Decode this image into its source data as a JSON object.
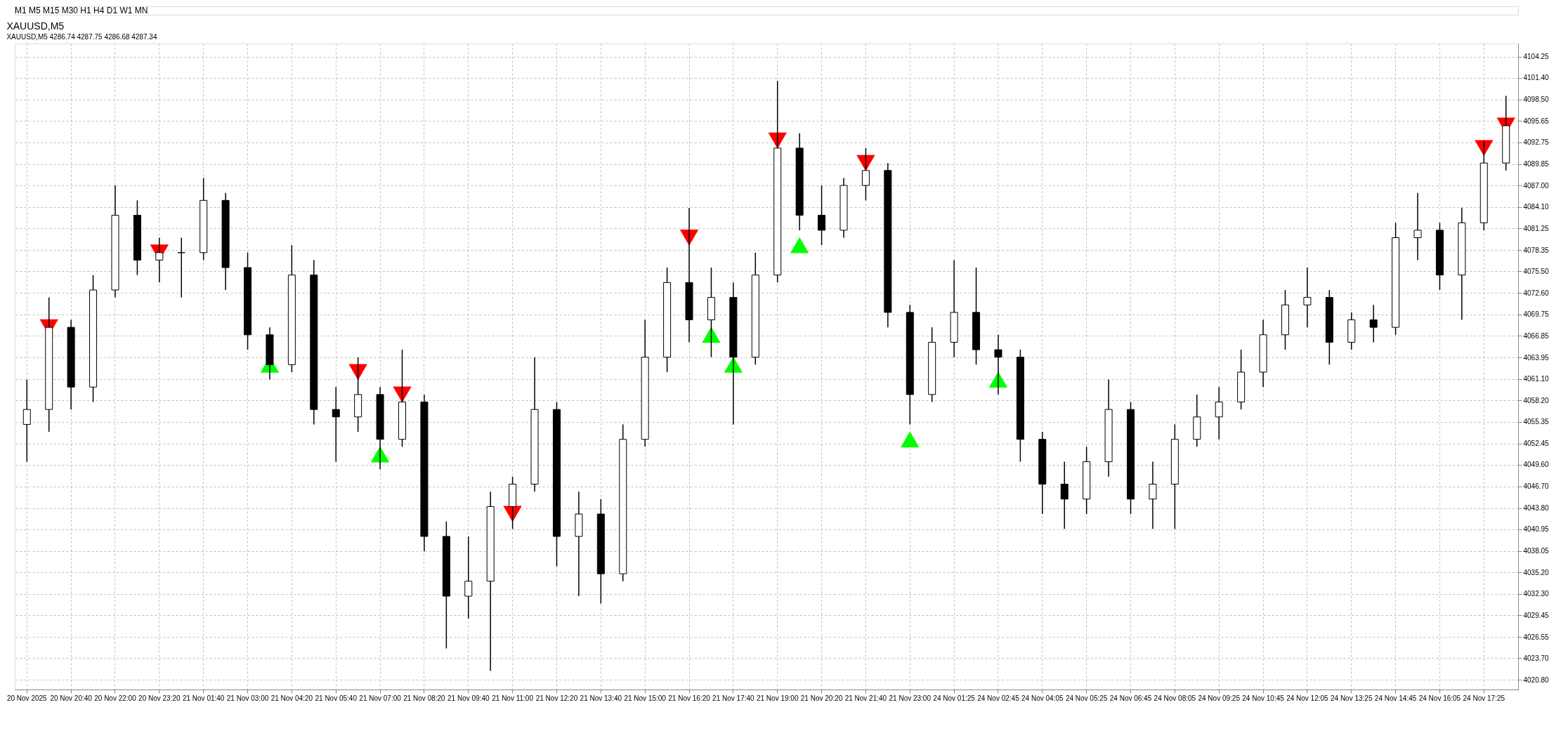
{
  "chart_data": {
    "type": "candlestick",
    "title": "XAUUSD,M5",
    "subtitle": "XAUUSD,M5  4286.74 4287.75 4286.68 4287.34",
    "annotations": [
      "M1   M5   M15   M30   H1   H4   D1   W1   MN"
    ],
    "categories": [
      "20 Nov 2025",
      null,
      "20 Nov 20:40",
      null,
      "20 Nov 22:00",
      null,
      "20 Nov 23:20",
      null,
      "21 Nov 01:40",
      null,
      "21 Nov 03:00",
      null,
      "21 Nov 04:20",
      null,
      "21 Nov 05:40",
      null,
      "21 Nov 07:00",
      null,
      "21 Nov 08:20",
      null,
      "21 Nov 09:40",
      null,
      "21 Nov 11:00",
      null,
      "21 Nov 12:20",
      null,
      "21 Nov 13:40",
      null,
      "21 Nov 15:00",
      null,
      "21 Nov 16:20",
      null,
      "21 Nov 17:40",
      null,
      "21 Nov 19:00",
      null,
      "21 Nov 20:20",
      null,
      "21 Nov 21:40",
      null,
      "21 Nov 23:00",
      null,
      "24 Nov 01:25",
      null,
      "24 Nov 02:45",
      null,
      "24 Nov 04:05",
      null,
      "24 Nov 05:25",
      null,
      "24 Nov 06:45",
      null,
      "24 Nov 08:05",
      null,
      "24 Nov 09:25",
      null,
      "24 Nov 10:45",
      null,
      "24 Nov 12:05",
      null,
      "24 Nov 13:25",
      null,
      "24 Nov 14:45",
      null,
      "24 Nov 16:05",
      null,
      "24 Nov 17:25",
      null
    ],
    "ohlc": [
      [
        4055,
        4061,
        4050,
        4057
      ],
      [
        4057,
        4072,
        4054,
        4068
      ],
      [
        4068,
        4069,
        4057,
        4060
      ],
      [
        4060,
        4075,
        4058,
        4073
      ],
      [
        4073,
        4087,
        4072,
        4083
      ],
      [
        4083,
        4085,
        4075,
        4077
      ],
      [
        4077,
        4080,
        4074,
        4078
      ],
      [
        4078,
        4080,
        4072,
        4078
      ],
      [
        4078,
        4088,
        4077,
        4085
      ],
      [
        4085,
        4086,
        4073,
        4076
      ],
      [
        4076,
        4078,
        4065,
        4067
      ],
      [
        4067,
        4068,
        4061,
        4063
      ],
      [
        4063,
        4079,
        4062,
        4075
      ],
      [
        4075,
        4077,
        4055,
        4057
      ],
      [
        4057,
        4060,
        4050,
        4056
      ],
      [
        4056,
        4064,
        4054,
        4059
      ],
      [
        4059,
        4060,
        4049,
        4053
      ],
      [
        4053,
        4065,
        4052,
        4058
      ],
      [
        4058,
        4059,
        4038,
        4040
      ],
      [
        4040,
        4042,
        4025,
        4032
      ],
      [
        4032,
        4040,
        4029,
        4034
      ],
      [
        4034,
        4046,
        4022,
        4044
      ],
      [
        4044,
        4048,
        4041,
        4047
      ],
      [
        4047,
        4064,
        4046,
        4057
      ],
      [
        4057,
        4058,
        4036,
        4040
      ],
      [
        4040,
        4046,
        4032,
        4043
      ],
      [
        4043,
        4045,
        4031,
        4035
      ],
      [
        4035,
        4055,
        4034,
        4053
      ],
      [
        4053,
        4069,
        4052,
        4064
      ],
      [
        4064,
        4076,
        4062,
        4074
      ],
      [
        4074,
        4084,
        4066,
        4069
      ],
      [
        4069,
        4076,
        4064,
        4072
      ],
      [
        4072,
        4074,
        4055,
        4064
      ],
      [
        4064,
        4078,
        4063,
        4075
      ],
      [
        4075,
        4101,
        4074,
        4092
      ],
      [
        4092,
        4094,
        4081,
        4083
      ],
      [
        4083,
        4087,
        4079,
        4081
      ],
      [
        4081,
        4088,
        4080,
        4087
      ],
      [
        4087,
        4092,
        4085,
        4089
      ],
      [
        4089,
        4090,
        4068,
        4070
      ],
      [
        4070,
        4071,
        4055,
        4059
      ],
      [
        4059,
        4068,
        4058,
        4066
      ],
      [
        4066,
        4077,
        4064,
        4070
      ],
      [
        4070,
        4076,
        4063,
        4065
      ],
      [
        4065,
        4067,
        4059,
        4064
      ],
      [
        4064,
        4065,
        4050,
        4053
      ],
      [
        4053,
        4054,
        4043,
        4047
      ],
      [
        4047,
        4050,
        4041,
        4045
      ],
      [
        4045,
        4052,
        4043,
        4050
      ],
      [
        4050,
        4061,
        4048,
        4057
      ],
      [
        4057,
        4058,
        4043,
        4045
      ],
      [
        4045,
        4050,
        4041,
        4047
      ],
      [
        4047,
        4055,
        4041,
        4053
      ],
      [
        4053,
        4059,
        4052,
        4056
      ],
      [
        4056,
        4060,
        4053,
        4058
      ],
      [
        4058,
        4065,
        4057,
        4062
      ],
      [
        4062,
        4069,
        4060,
        4067
      ],
      [
        4067,
        4073,
        4065,
        4071
      ],
      [
        4071,
        4076,
        4068,
        4072
      ],
      [
        4072,
        4073,
        4063,
        4066
      ],
      [
        4066,
        4070,
        4065,
        4069
      ],
      [
        4069,
        4071,
        4066,
        4068
      ],
      [
        4068,
        4082,
        4067,
        4080
      ],
      [
        4080,
        4086,
        4077,
        4081
      ],
      [
        4081,
        4082,
        4073,
        4075
      ],
      [
        4075,
        4084,
        4069,
        4082
      ],
      [
        4082,
        4093,
        4081,
        4090
      ],
      [
        4090,
        4099,
        4089,
        4095
      ]
    ],
    "series": [
      {
        "type": "scatter",
        "marker": "triangle",
        "color": "#ff0000",
        "values": [
          null,
          4068,
          null,
          null,
          null,
          null,
          4078,
          null,
          null,
          null,
          null,
          null,
          null,
          null,
          null,
          4062,
          null,
          4059,
          null,
          null,
          null,
          null,
          4043,
          null,
          null,
          null,
          null,
          null,
          null,
          null,
          4080,
          null,
          null,
          null,
          4093,
          null,
          null,
          null,
          4090,
          null,
          null,
          null,
          null,
          null,
          null,
          null,
          null,
          null,
          null,
          null,
          null,
          null,
          null,
          null,
          null,
          null,
          null,
          null,
          null,
          null,
          null,
          null,
          null,
          null,
          null,
          null,
          4092,
          4095
        ]
      },
      {
        "type": "scatter",
        "marker": "triangle",
        "color": "#00ff00",
        "values": [
          null,
          null,
          null,
          null,
          null,
          null,
          null,
          null,
          null,
          null,
          null,
          4063,
          null,
          null,
          null,
          null,
          4051,
          null,
          null,
          null,
          null,
          null,
          null,
          null,
          null,
          null,
          null,
          null,
          null,
          null,
          null,
          4067,
          4063,
          null,
          null,
          4079,
          null,
          null,
          null,
          null,
          4053,
          null,
          null,
          null,
          4061,
          null,
          null,
          null,
          null,
          null,
          null,
          null,
          null,
          null,
          null,
          null,
          null,
          null,
          null,
          null,
          null,
          null,
          null,
          null,
          null,
          null,
          null,
          null
        ]
      }
    ],
    "ylim": [
      4019.5,
      4106
    ],
    "yticks": [
      {
        "value": 4020.8,
        "label": "4020.80"
      },
      {
        "value": 4023.7,
        "label": "4023.70"
      },
      {
        "value": 4026.55,
        "label": "4026.55"
      },
      {
        "value": 4029.45,
        "label": "4029.45"
      },
      {
        "value": 4032.3,
        "label": "4032.30"
      },
      {
        "value": 4035.2,
        "label": "4035.20"
      },
      {
        "value": 4038.05,
        "label": "4038.05"
      },
      {
        "value": 4040.95,
        "label": "4040.95"
      },
      {
        "value": 4043.8,
        "label": "4043.80"
      },
      {
        "value": 4046.7,
        "label": "4046.70"
      },
      {
        "value": 4049.6,
        "label": "4049.60"
      },
      {
        "value": 4052.45,
        "label": "4052.45"
      },
      {
        "value": 4055.35,
        "label": "4055.35"
      },
      {
        "value": 4058.2,
        "label": "4058.20"
      },
      {
        "value": 4061.1,
        "label": "4061.10"
      },
      {
        "value": 4063.95,
        "label": "4063.95"
      },
      {
        "value": 4066.85,
        "label": "4066.85"
      },
      {
        "value": 4069.75,
        "label": "4069.75"
      },
      {
        "value": 4072.6,
        "label": "4072.60"
      },
      {
        "value": 4075.5,
        "label": "4075.50"
      },
      {
        "value": 4078.35,
        "label": "4078.35"
      },
      {
        "value": 4081.25,
        "label": "4081.25"
      },
      {
        "value": 4084.1,
        "label": "4084.10"
      },
      {
        "value": 4087,
        "label": "4087.00"
      },
      {
        "value": 4089.85,
        "label": "4089.85"
      },
      {
        "value": 4092.75,
        "label": "4092.75"
      },
      {
        "value": 4095.65,
        "label": "4095.65"
      },
      {
        "value": 4098.5,
        "label": "4098.50"
      },
      {
        "value": 4101.4,
        "label": "4101.40"
      },
      {
        "value": 4104.25,
        "label": "4104.25"
      }
    ],
    "grid": true
  }
}
